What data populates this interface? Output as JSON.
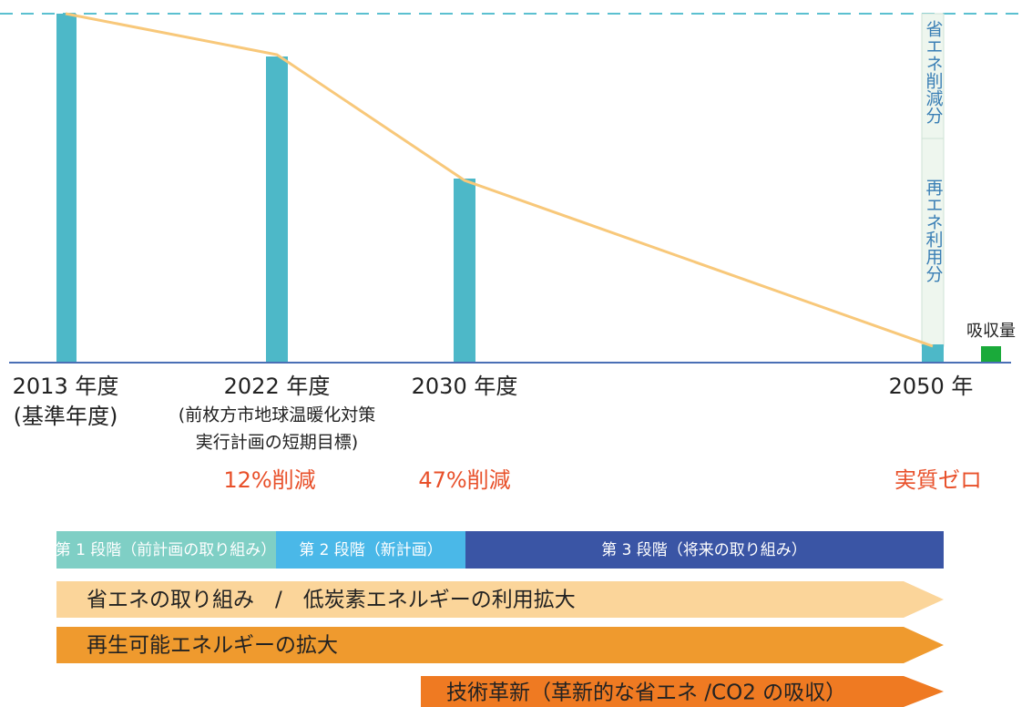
{
  "milestones": [
    {
      "year": "2013 年度",
      "notes": [
        "(基準年度)"
      ]
    },
    {
      "year": "2022 年度",
      "notes": [
        "(前枚方市地球温暖化対策",
        "実行計画の短期目標)"
      ],
      "reduction": "12%削減"
    },
    {
      "year": "2030 年度",
      "notes": [],
      "reduction": "47%削減"
    },
    {
      "year": "2050 年",
      "notes": [],
      "reduction": "実質ゼロ"
    }
  ],
  "breakdown": {
    "upper": "省エネ削減分",
    "lower": "再エネ利用分",
    "absorption": "吸収量"
  },
  "phases": [
    "第 1 段階（前計画の取り組み）",
    "第 2 段階（新計画）",
    "第 3 段階（将来の取り組み）"
  ],
  "arrows": [
    "省エネの取り組み　/　低炭素エネルギーの利用拡大",
    "再生可能エネルギーの拡大",
    "技術革新（革新的な省エネ /CO2 の吸収）"
  ]
}
